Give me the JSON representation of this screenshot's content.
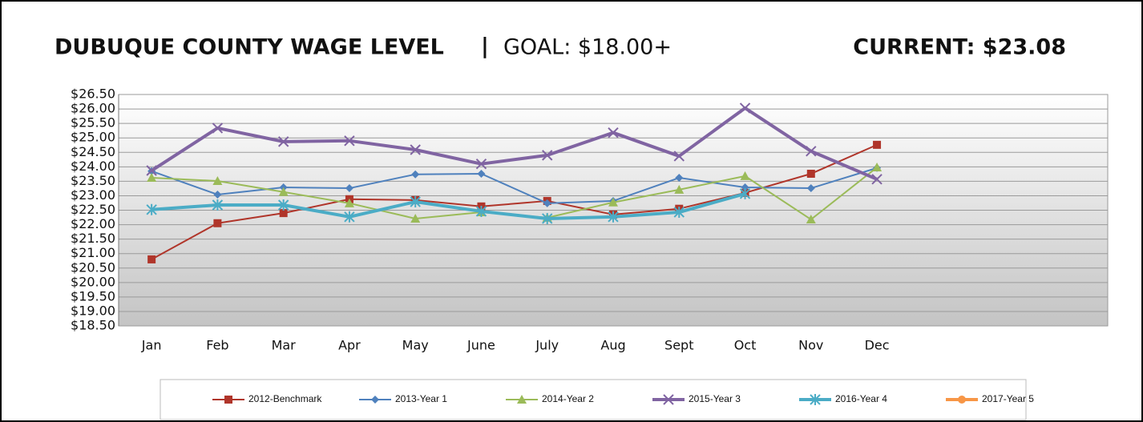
{
  "chart_data": {
    "type": "line",
    "title": "DUBUQUE COUNTY WAGE LEVEL",
    "separator": "|",
    "goal": "GOAL: $18.00+",
    "current": "CURRENT: $23.08",
    "categories": [
      "Jan",
      "Feb",
      "Mar",
      "Apr",
      "May",
      "June",
      "July",
      "Aug",
      "Sept",
      "Oct",
      "Nov",
      "Dec",
      null,
      null,
      null
    ],
    "ylim": [
      18.5,
      26.5
    ],
    "yticks": [
      {
        "value": 18.5,
        "label": "$18.50"
      },
      {
        "value": 19,
        "label": "$19.00"
      },
      {
        "value": 19.5,
        "label": "$19.50"
      },
      {
        "value": 20,
        "label": "$20.00"
      },
      {
        "value": 20.5,
        "label": "$20.50"
      },
      {
        "value": 21,
        "label": "$21.00"
      },
      {
        "value": 21.5,
        "label": "$21.50"
      },
      {
        "value": 22,
        "label": "$22.00"
      },
      {
        "value": 22.5,
        "label": "$22.50"
      },
      {
        "value": 23,
        "label": "$23.00"
      },
      {
        "value": 23.5,
        "label": "$23.50"
      },
      {
        "value": 24,
        "label": "$24.00"
      },
      {
        "value": 24.5,
        "label": "$24.50"
      },
      {
        "value": 25,
        "label": "$25.00"
      },
      {
        "value": 25.5,
        "label": "$25.50"
      },
      {
        "value": 26,
        "label": "$26.00"
      },
      {
        "value": 26.5,
        "label": "$26.50"
      }
    ],
    "grid": true,
    "legend": "bottom",
    "series": [
      {
        "name": "2012-Benchmark",
        "color": "#b0352a",
        "marker": "square",
        "line_width": 2,
        "values": [
          20.8,
          22.05,
          22.4,
          22.88,
          22.85,
          22.63,
          22.82,
          22.35,
          22.55,
          23.1,
          23.76,
          24.76,
          null,
          null,
          null
        ]
      },
      {
        "name": "2013-Year 1",
        "color": "#4f81bd",
        "marker": "diamond",
        "line_width": 2,
        "values": [
          23.85,
          23.04,
          23.29,
          23.26,
          23.74,
          23.76,
          22.74,
          22.82,
          23.62,
          23.29,
          23.26,
          23.96,
          null,
          null,
          null
        ]
      },
      {
        "name": "2014-Year 2",
        "color": "#9bbb59",
        "marker": "triangle",
        "line_width": 2,
        "values": [
          23.62,
          23.51,
          23.13,
          22.74,
          22.21,
          22.43,
          22.24,
          22.77,
          23.21,
          23.68,
          22.18,
          23.98,
          null,
          null,
          null
        ]
      },
      {
        "name": "2015-Year 3",
        "color": "#8064a2",
        "marker": "x",
        "line_width": 4,
        "values": [
          23.87,
          25.34,
          24.87,
          24.9,
          24.59,
          24.1,
          24.4,
          25.18,
          24.37,
          26.03,
          24.54,
          23.57,
          null,
          null,
          null
        ]
      },
      {
        "name": "2016-Year 4",
        "color": "#4bacc6",
        "marker": "star",
        "line_width": 4,
        "values": [
          22.52,
          22.68,
          22.68,
          22.27,
          22.79,
          22.46,
          22.21,
          22.27,
          22.43,
          23.07,
          null,
          null,
          null,
          null,
          null
        ]
      },
      {
        "name": "2017-Year 5",
        "color": "#f79646",
        "marker": "circle",
        "line_width": 4,
        "values": [
          null,
          null,
          null,
          null,
          null,
          null,
          null,
          null,
          null,
          null,
          null,
          null,
          null,
          null,
          null
        ]
      }
    ]
  }
}
